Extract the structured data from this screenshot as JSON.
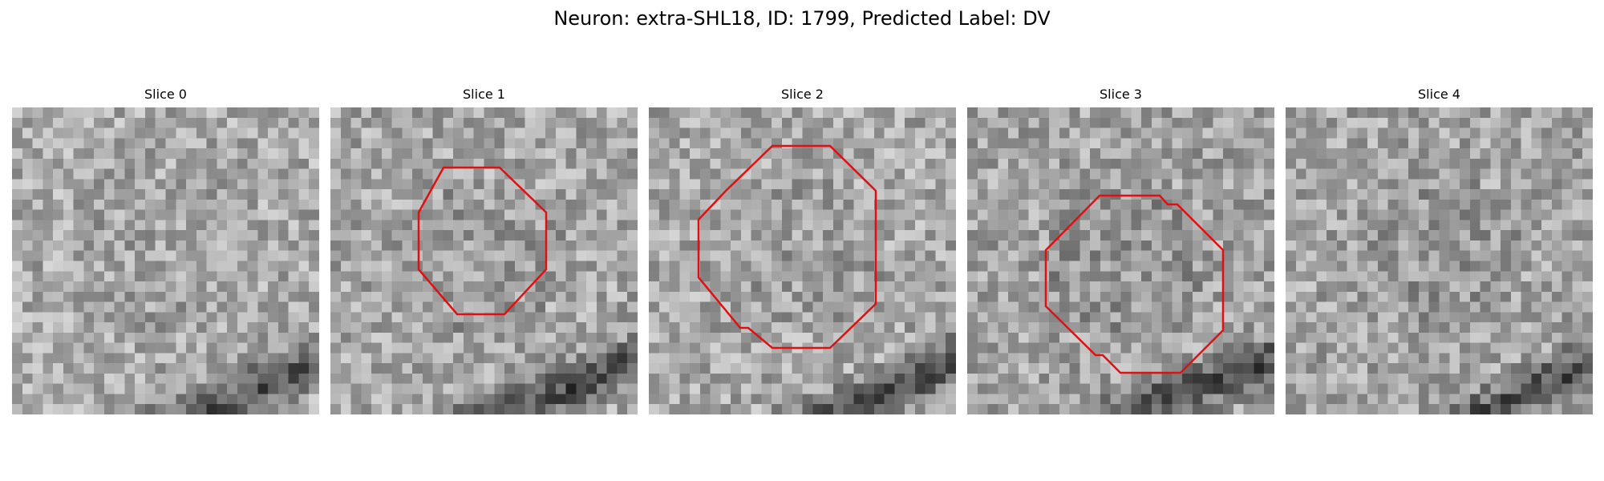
{
  "figure": {
    "title": "Neuron: extra-SHL18, ID: 1799, Predicted Label: DV"
  },
  "colors": {
    "roi_outline": "#e01010",
    "background": "#ffffff"
  },
  "panels": [
    {
      "title": "Slice 0",
      "has_roi": false,
      "darkness": 0.15,
      "band": 1.0
    },
    {
      "title": "Slice 1",
      "has_roi": true,
      "darkness": 0.25,
      "band": 0.9
    },
    {
      "title": "Slice 2",
      "has_roi": true,
      "darkness": 0.2,
      "band": 1.0
    },
    {
      "title": "Slice 3",
      "has_roi": true,
      "darkness": 0.35,
      "band": 0.8
    },
    {
      "title": "Slice 4",
      "has_roi": false,
      "darkness": 0.3,
      "band": 1.1
    }
  ]
}
